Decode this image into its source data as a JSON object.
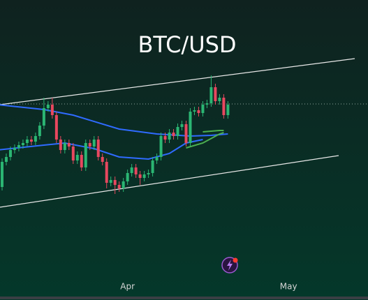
{
  "chart_data": {
    "type": "candlestick",
    "title": "BTC/USD",
    "up_color": "#2bb673",
    "down_color": "#e8485f",
    "xlim": [
      -0.5,
      87.5
    ],
    "ylim": [
      0,
      430
    ],
    "xticks": [
      {
        "value": 30,
        "label": "Apr"
      },
      {
        "value": 68.5,
        "label": "May"
      }
    ],
    "open": [
      162,
      198,
      205,
      215,
      218,
      222,
      225,
      230,
      227,
      235,
      250,
      275,
      280,
      265,
      230,
      215,
      225,
      220,
      200,
      208,
      190,
      225,
      220,
      230,
      205,
      198,
      168,
      172,
      165,
      160,
      170,
      182,
      190,
      180,
      175,
      180,
      182,
      200,
      205,
      235,
      230,
      240,
      235,
      248,
      252,
      225,
      270,
      272,
      268,
      280,
      282,
      305,
      285,
      290,
      265
    ],
    "close": [
      198,
      205,
      215,
      218,
      222,
      225,
      230,
      227,
      235,
      250,
      275,
      280,
      265,
      230,
      215,
      225,
      220,
      200,
      208,
      190,
      225,
      220,
      230,
      205,
      198,
      168,
      172,
      165,
      160,
      170,
      182,
      190,
      180,
      175,
      180,
      182,
      200,
      205,
      235,
      230,
      240,
      235,
      248,
      252,
      225,
      270,
      272,
      268,
      280,
      282,
      305,
      285,
      290,
      265,
      280
    ],
    "high": [
      203,
      210,
      220,
      223,
      227,
      230,
      235,
      235,
      240,
      255,
      290,
      285,
      290,
      270,
      235,
      230,
      230,
      225,
      213,
      213,
      230,
      230,
      235,
      235,
      210,
      203,
      177,
      177,
      170,
      175,
      187,
      195,
      195,
      185,
      185,
      187,
      205,
      210,
      240,
      240,
      245,
      245,
      253,
      257,
      257,
      275,
      277,
      277,
      285,
      287,
      322,
      310,
      295,
      295,
      285
    ],
    "low": [
      157,
      193,
      200,
      210,
      213,
      217,
      220,
      222,
      222,
      230,
      245,
      270,
      260,
      225,
      210,
      210,
      215,
      195,
      195,
      185,
      185,
      215,
      215,
      200,
      193,
      160,
      163,
      152,
      155,
      155,
      165,
      177,
      175,
      165,
      170,
      175,
      177,
      195,
      200,
      225,
      225,
      230,
      230,
      243,
      220,
      220,
      265,
      263,
      263,
      275,
      277,
      280,
      280,
      260,
      260
    ],
    "indicators": [
      {
        "color": "#2f6bff",
        "x": [
          -1,
          10,
          17,
          28,
          37,
          45,
          50,
          54
        ],
        "values": [
          280,
          273,
          265,
          245,
          238,
          235,
          236,
          238
        ]
      },
      {
        "color": "#2f6bff",
        "x": [
          -1,
          10,
          15,
          22,
          28,
          35,
          40,
          44,
          48
        ],
        "values": [
          215,
          222,
          225,
          217,
          205,
          202,
          210,
          225,
          230
        ]
      },
      {
        "color": "#4caf50",
        "x": [
          48,
          52,
          53
        ],
        "values": [
          241,
          243,
          243
        ]
      },
      {
        "color": "#4caf50",
        "x": [
          44,
          48,
          52,
          53
        ],
        "values": [
          218,
          225,
          238,
          240
        ]
      }
    ]
  }
}
